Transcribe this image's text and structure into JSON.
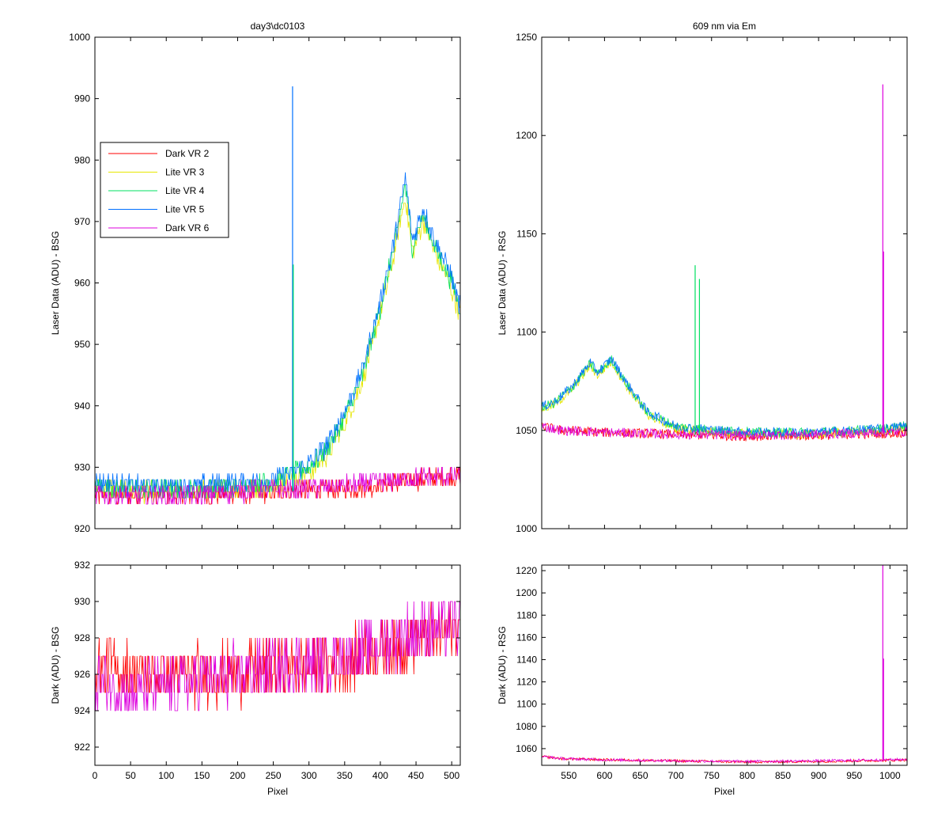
{
  "colors": {
    "dark_vr_2": "#ff0000",
    "lite_vr_3": "#e6e600",
    "lite_vr_4": "#00e060",
    "lite_vr_5": "#0070ff",
    "dark_vr_6": "#dd00dd"
  },
  "chart_data": [
    {
      "id": "tl",
      "type": "line",
      "title": "day3\\dc0103",
      "xlabel": "",
      "ylabel": "Laser Data (ADU) - BSG",
      "xlim": [
        0,
        512
      ],
      "ylim": [
        920,
        1000
      ],
      "x_ticks": [
        0,
        50,
        100,
        150,
        200,
        250,
        300,
        350,
        400,
        450,
        500
      ],
      "x_tick_labels_visible": false,
      "y_ticks": [
        920,
        930,
        940,
        950,
        960,
        970,
        980,
        990,
        1000
      ],
      "legend_position": "upper-left",
      "legend": [
        "Dark VR 2",
        "Lite VR 3",
        "Lite VR 4",
        "Lite VR 5",
        "Dark VR 6"
      ],
      "series": [
        {
          "name": "Dark VR 2",
          "color_key": "dark_vr_2",
          "x": [
            0,
            50,
            100,
            150,
            200,
            250,
            300,
            350,
            400,
            450,
            512
          ],
          "y": [
            925.5,
            925.5,
            925.5,
            925.6,
            925.7,
            926,
            926.2,
            926.6,
            927,
            928,
            928.6
          ]
        },
        {
          "name": "Lite VR 3",
          "color_key": "lite_vr_3",
          "x": [
            0,
            50,
            100,
            150,
            200,
            250,
            275,
            300,
            325,
            350,
            375,
            400,
            420,
            435,
            445,
            460,
            480,
            500,
            512
          ],
          "y": [
            927,
            926,
            926,
            926,
            926.5,
            927,
            928,
            929,
            932,
            937,
            944,
            955,
            965,
            974,
            965,
            970,
            964,
            959,
            955
          ]
        },
        {
          "name": "Lite VR 4",
          "color_key": "lite_vr_4",
          "x": [
            0,
            50,
            100,
            150,
            200,
            250,
            275,
            300,
            325,
            350,
            375,
            400,
            420,
            435,
            445,
            460,
            480,
            500,
            512
          ],
          "y": [
            927,
            926.5,
            926.5,
            926.5,
            927,
            927.5,
            929,
            930,
            933,
            938,
            945,
            956,
            966,
            976,
            966,
            971,
            965,
            960,
            956
          ]
        },
        {
          "name": "Lite VR 5",
          "color_key": "lite_vr_5",
          "x": [
            0,
            50,
            100,
            150,
            200,
            250,
            275,
            300,
            325,
            350,
            375,
            400,
            420,
            435,
            445,
            460,
            480,
            500,
            512
          ],
          "y": [
            927.5,
            927,
            927,
            927,
            927.5,
            928,
            929,
            930.5,
            933.5,
            939,
            946,
            957,
            967,
            977,
            967,
            972,
            966,
            961,
            956
          ]
        },
        {
          "name": "Dark VR 6",
          "color_key": "dark_vr_6",
          "x": [
            0,
            50,
            100,
            150,
            200,
            250,
            300,
            350,
            400,
            450,
            512
          ],
          "y": [
            925.5,
            925.2,
            925.2,
            925.5,
            926,
            926.3,
            926.6,
            927,
            927.6,
            928.2,
            928.6
          ]
        }
      ],
      "spikes": [
        {
          "color_key": "lite_vr_5",
          "x": 277,
          "y": 992
        },
        {
          "color_key": "lite_vr_4",
          "x": 278,
          "y": 963
        }
      ]
    },
    {
      "id": "tr",
      "type": "line",
      "title": "609 nm via Em",
      "xlabel": "",
      "ylabel": "Laser Data (ADU) - RSG",
      "xlim": [
        512,
        1024
      ],
      "ylim": [
        1000,
        1250
      ],
      "x_ticks": [
        550,
        600,
        650,
        700,
        750,
        800,
        850,
        900,
        950,
        1000
      ],
      "x_tick_labels_visible": false,
      "y_ticks": [
        1000,
        1050,
        1100,
        1150,
        1200,
        1250
      ],
      "series": [
        {
          "name": "Dark VR 2",
          "color_key": "dark_vr_2",
          "x": [
            512,
            540,
            600,
            700,
            800,
            900,
            1000,
            1024
          ],
          "y": [
            1052,
            1050,
            1049,
            1048,
            1047,
            1047.5,
            1048.5,
            1049
          ]
        },
        {
          "name": "Lite VR 3",
          "color_key": "lite_vr_3",
          "x": [
            512,
            530,
            555,
            580,
            590,
            610,
            630,
            660,
            700,
            760,
            820,
            900,
            1000,
            1024
          ],
          "y": [
            1061,
            1063,
            1071,
            1083,
            1078,
            1085,
            1073,
            1058,
            1051,
            1049,
            1048,
            1048,
            1050,
            1052
          ]
        },
        {
          "name": "Lite VR 4",
          "color_key": "lite_vr_4",
          "x": [
            512,
            530,
            555,
            580,
            590,
            610,
            630,
            660,
            700,
            760,
            820,
            900,
            1000,
            1024
          ],
          "y": [
            1061.5,
            1064,
            1072,
            1084,
            1079,
            1086,
            1074,
            1059,
            1052,
            1050,
            1049,
            1049,
            1051,
            1053
          ]
        },
        {
          "name": "Lite VR 5",
          "color_key": "lite_vr_5",
          "x": [
            512,
            530,
            555,
            580,
            590,
            610,
            630,
            660,
            700,
            760,
            820,
            900,
            1000,
            1024
          ],
          "y": [
            1062,
            1064.5,
            1072.5,
            1084.5,
            1079.5,
            1086.5,
            1074.5,
            1059.5,
            1052,
            1050,
            1049,
            1049,
            1051,
            1053
          ]
        },
        {
          "name": "Dark VR 6",
          "color_key": "dark_vr_6",
          "x": [
            512,
            540,
            600,
            700,
            800,
            900,
            1000,
            1024
          ],
          "y": [
            1052,
            1050,
            1049,
            1048,
            1047.5,
            1048,
            1049,
            1049.5
          ]
        }
      ],
      "spikes": [
        {
          "color_key": "lite_vr_4",
          "x": 727,
          "y": 1134
        },
        {
          "color_key": "lite_vr_4",
          "x": 733,
          "y": 1127
        },
        {
          "color_key": "dark_vr_6",
          "x": 990,
          "y": 1226
        },
        {
          "color_key": "dark_vr_6",
          "x": 991,
          "y": 1141
        }
      ]
    },
    {
      "id": "bl",
      "type": "line",
      "title": "",
      "xlabel": "Pixel",
      "ylabel": "Dark (ADU) - BSG",
      "xlim": [
        0,
        512
      ],
      "ylim": [
        921,
        932
      ],
      "x_ticks": [
        0,
        50,
        100,
        150,
        200,
        250,
        300,
        350,
        400,
        450,
        500
      ],
      "x_tick_labels_visible": true,
      "y_ticks": [
        922,
        924,
        926,
        928,
        930,
        932
      ],
      "series": [
        {
          "name": "Dark VR 2",
          "color_key": "dark_vr_2",
          "x": [
            0,
            50,
            100,
            150,
            200,
            250,
            300,
            350,
            400,
            450,
            512
          ],
          "y": [
            926.5,
            926.2,
            926,
            926,
            926,
            926.2,
            926.4,
            926.8,
            927.3,
            928,
            928.6
          ]
        },
        {
          "name": "Dark VR 6",
          "color_key": "dark_vr_6",
          "x": [
            0,
            50,
            100,
            150,
            200,
            250,
            300,
            350,
            400,
            450,
            512
          ],
          "y": [
            925.5,
            925,
            925.2,
            925.6,
            926,
            926.3,
            926.6,
            927,
            927.6,
            928.3,
            928.8
          ]
        }
      ],
      "spikes": []
    },
    {
      "id": "br",
      "type": "line",
      "title": "",
      "xlabel": "Pixel",
      "ylabel": "Dark (ADU) - RSG",
      "xlim": [
        512,
        1024
      ],
      "ylim": [
        1045,
        1225
      ],
      "x_ticks": [
        550,
        600,
        650,
        700,
        750,
        800,
        850,
        900,
        950,
        1000
      ],
      "x_tick_labels_visible": true,
      "y_ticks": [
        1060,
        1080,
        1100,
        1120,
        1140,
        1160,
        1180,
        1200,
        1220
      ],
      "series": [
        {
          "name": "Dark VR 2",
          "color_key": "dark_vr_2",
          "x": [
            512,
            540,
            600,
            700,
            800,
            900,
            1000,
            1024
          ],
          "y": [
            1053,
            1051,
            1050,
            1049,
            1048,
            1048.5,
            1049.5,
            1050
          ]
        },
        {
          "name": "Dark VR 6",
          "color_key": "dark_vr_6",
          "x": [
            512,
            540,
            600,
            700,
            800,
            900,
            1000,
            1024
          ],
          "y": [
            1053,
            1051,
            1050,
            1049,
            1048.5,
            1049,
            1050,
            1050.5
          ]
        }
      ],
      "spikes": [
        {
          "color_key": "dark_vr_6",
          "x": 990,
          "y": 1226
        },
        {
          "color_key": "dark_vr_6",
          "x": 991,
          "y": 1141
        }
      ]
    }
  ]
}
